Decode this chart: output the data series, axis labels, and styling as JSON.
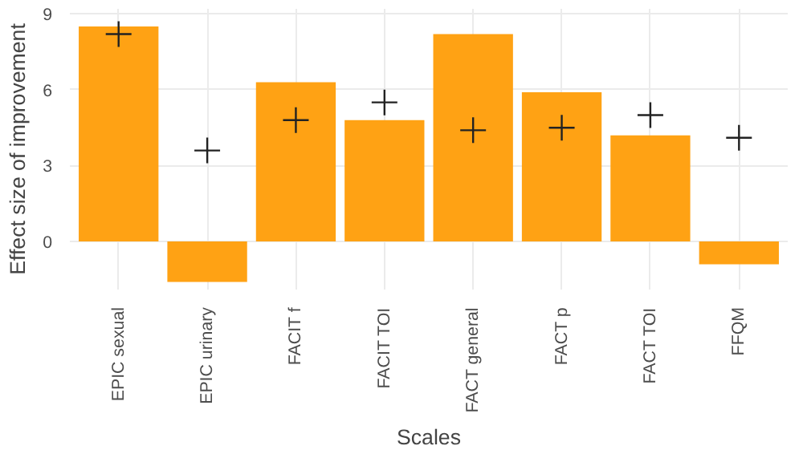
{
  "chart_data": {
    "type": "bar",
    "xlabel": "Scales",
    "ylabel": "Effect size of improvement",
    "categories": [
      "EPIC sexual",
      "EPIC urinary",
      "FACIT f",
      "FACIT TOI",
      "FACT general",
      "FACT p",
      "FACT TOI",
      "FFQM"
    ],
    "series": [
      {
        "color": "#ffa214",
        "values": [
          8.5,
          -1.6,
          6.3,
          4.8,
          8.2,
          5.9,
          4.2,
          -0.9
        ]
      },
      {
        "type": "scatter",
        "color": "#222222",
        "marker": "cross",
        "x": [
          "EPIC sexual",
          "EPIC urinary",
          "FACIT f",
          "FACIT TOI",
          "FACT general",
          "FACT p",
          "FACT TOI",
          "FFQM"
        ],
        "values": [
          8.2,
          3.6,
          4.8,
          5.5,
          4.4,
          4.5,
          5.0,
          4.1
        ]
      }
    ],
    "ylim": [
      -1.9,
      9.2
    ],
    "yticks": [
      0,
      3,
      6,
      9
    ],
    "grid": true
  }
}
